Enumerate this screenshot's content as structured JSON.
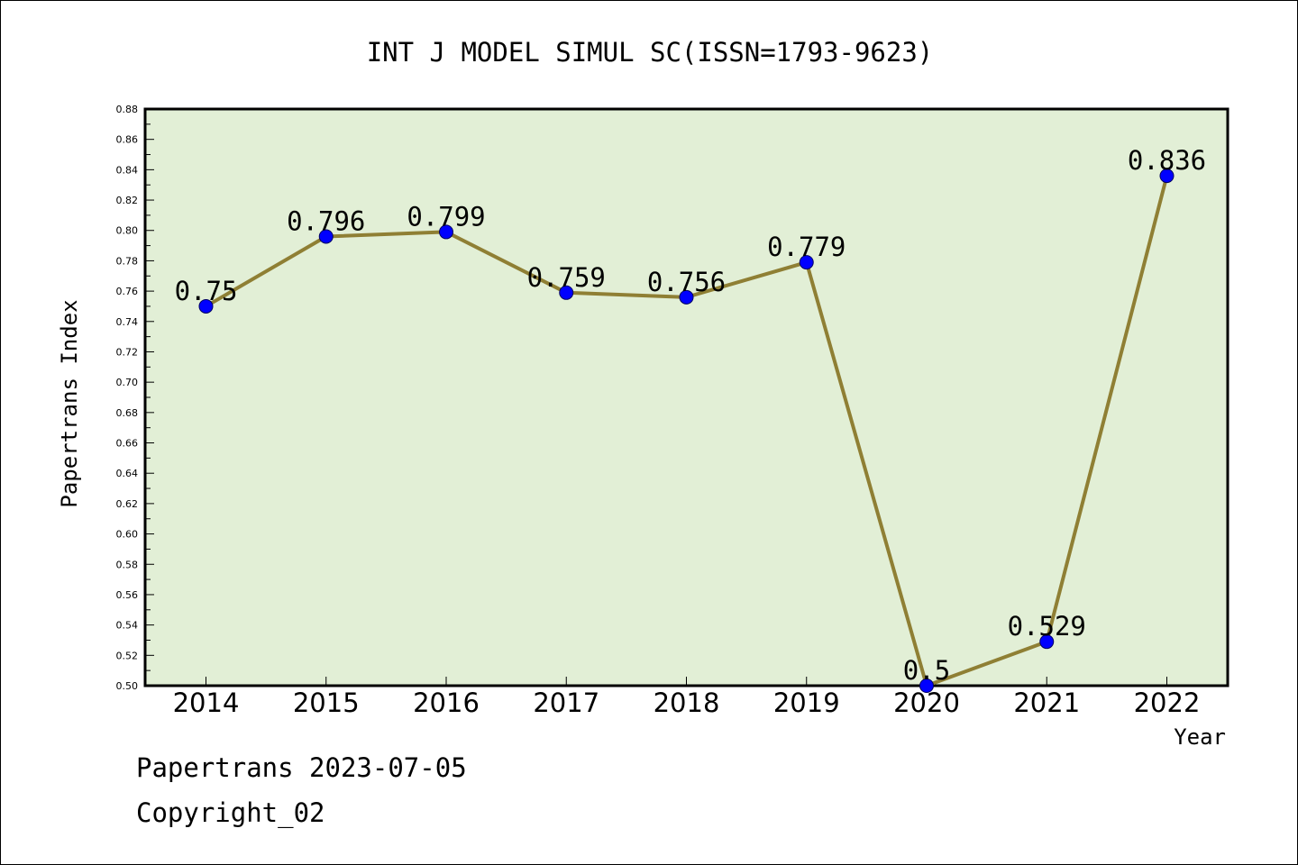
{
  "chart_data": {
    "type": "line",
    "title": "INT J MODEL SIMUL SC(ISSN=1793-9623)",
    "xlabel": "Year",
    "ylabel": "Papertrans Index",
    "categories": [
      "2014",
      "2015",
      "2016",
      "2017",
      "2018",
      "2019",
      "2020",
      "2021",
      "2022"
    ],
    "series": [
      {
        "values": [
          0.75,
          0.796,
          0.799,
          0.759,
          0.756,
          0.779,
          0.5,
          0.529,
          0.836
        ]
      }
    ],
    "data_labels": [
      "0.75",
      "0.796",
      "0.799",
      "0.759",
      "0.756",
      "0.779",
      "0.5",
      "0.529",
      "0.836"
    ],
    "ylim": [
      0.5,
      0.88
    ],
    "ytick_labels": [
      "0.50",
      "0.52",
      "0.54",
      "0.56",
      "0.58",
      "0.60",
      "0.62",
      "0.64",
      "0.66",
      "0.68",
      "0.70",
      "0.72",
      "0.74",
      "0.76",
      "0.78",
      "0.80",
      "0.82",
      "0.84",
      "0.86",
      "0.88"
    ],
    "grid": false,
    "colors": {
      "plot_background": "#e2efd6",
      "line": "#8f7f34",
      "marker": "#0000ff"
    }
  },
  "footer": {
    "line1": "Papertrans 2023-07-05",
    "line2": "Copyright_02"
  }
}
